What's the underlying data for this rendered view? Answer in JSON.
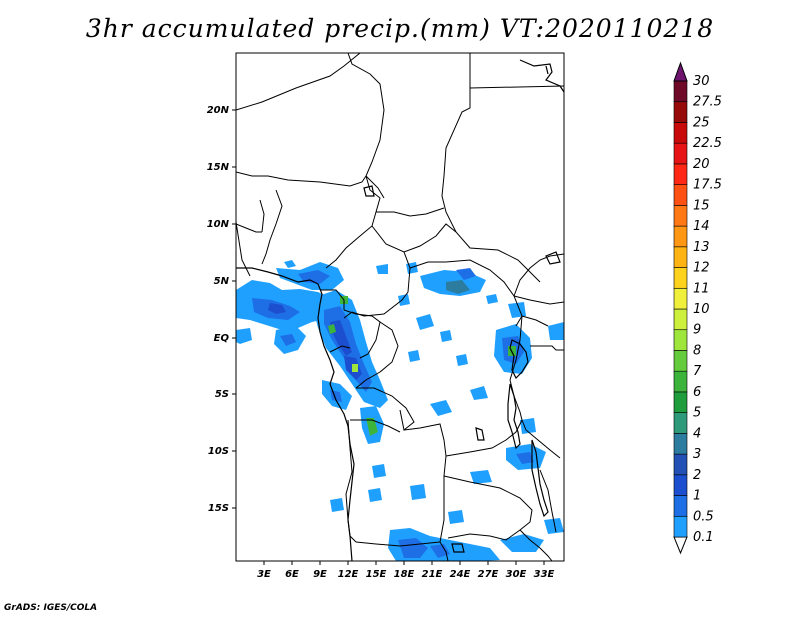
{
  "title": "3hr accumulated precip.(mm) VT:2020110218",
  "credit": "GrADS: IGES/COLA",
  "map": {
    "lon_labels": [
      "3E",
      "6E",
      "9E",
      "12E",
      "15E",
      "18E",
      "21E",
      "24E",
      "27E",
      "30E",
      "33E"
    ],
    "lat_labels": [
      "20N",
      "15N",
      "10N",
      "5N",
      "EQ",
      "5S",
      "10S",
      "15S"
    ]
  },
  "colorbar": {
    "levels": [
      "0.1",
      "0.5",
      "1",
      "2",
      "3",
      "4",
      "5",
      "6",
      "7",
      "8",
      "9",
      "10",
      "11",
      "12",
      "13",
      "14",
      "15",
      "17.5",
      "20",
      "22.5",
      "25",
      "27.5",
      "30"
    ],
    "colors": [
      "#1fa0ff",
      "#1e6ee6",
      "#1c4fd0",
      "#2350b4",
      "#2b7c9e",
      "#2f9a7a",
      "#1f9c3c",
      "#3cb43c",
      "#64cc3c",
      "#9ee63c",
      "#ccf03c",
      "#f0f03c",
      "#ffd21e",
      "#ffb414",
      "#ff9614",
      "#ff7814",
      "#ff5014",
      "#ff2814",
      "#e61414",
      "#c80a0a",
      "#960a0a",
      "#6e0a28",
      "#6e146e"
    ]
  },
  "colors": {
    "light_blue": "#1fa0ff",
    "mid_blue": "#1e6ee6",
    "dark_blue": "#1c4fd0",
    "teal": "#2b7c9e",
    "green": "#3cb43c",
    "yellow_green": "#9ee63c"
  }
}
